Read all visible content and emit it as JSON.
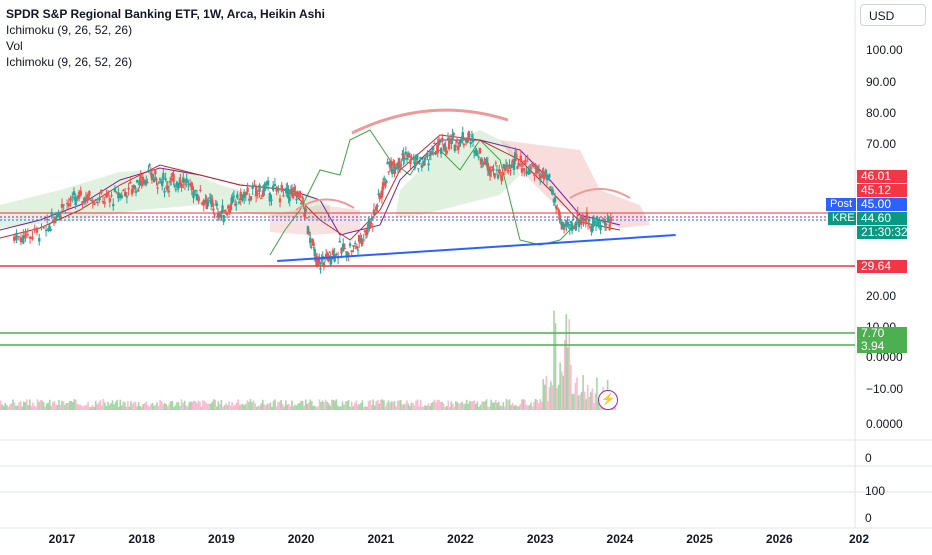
{
  "legend": {
    "title": "SPDR S&P Regional Banking ETF, 1W, Arca, Heikin Ashi",
    "indicators": [
      "Ichimoku (9, 26, 52, 26)",
      "Vol",
      "Ichimoku (9, 26, 52, 26)"
    ]
  },
  "currency": "USD",
  "colors": {
    "up": "#26a69a",
    "down": "#ef5350",
    "red_line": "#e53935",
    "green_line": "#4caf50",
    "trend": "#2962ff",
    "post_badge": "#2962ff",
    "kre_badge": "#089981",
    "dotted_purple": "#9c27b0"
  },
  "badges": [
    {
      "label": "46.01",
      "color": "#f23645"
    },
    {
      "label": "45.12",
      "color": "#f23645"
    },
    {
      "label": "45.00",
      "color": "#2962ff"
    },
    {
      "label": "44.60",
      "color": "#089981"
    },
    {
      "label": "21:30:32",
      "color": "#089981"
    },
    {
      "label": "29.64",
      "color": "#f23645"
    },
    {
      "label": "7.70",
      "color": "#4caf50"
    },
    {
      "label": "3.94",
      "color": "#4caf50"
    }
  ],
  "side_tags": {
    "post": "Post",
    "ticker": "KRE"
  },
  "flash_icon": "lightning-icon",
  "chart_data": {
    "type": "line",
    "title": "SPDR S&P Regional Banking ETF, 1W, Arca, Heikin Ashi",
    "price_axis_ticks": [
      "100.00",
      "90.00",
      "80.00",
      "70.00",
      "20.00",
      "10.00",
      "0.0000",
      "−10.00",
      "0.0000"
    ],
    "pane_axis_ticks": [
      "0",
      "100",
      "0"
    ],
    "x_tick_labels": [
      "2017",
      "2018",
      "2019",
      "2020",
      "2021",
      "2022",
      "2023",
      "2024",
      "2025",
      "2026",
      "202"
    ],
    "x": [
      2016.4,
      2016.8,
      2017.0,
      2017.3,
      2017.6,
      2017.9,
      2018.1,
      2018.3,
      2018.5,
      2018.8,
      2019.0,
      2019.2,
      2019.5,
      2019.8,
      2020.0,
      2020.2,
      2020.4,
      2020.7,
      2020.9,
      2021.1,
      2021.3,
      2021.5,
      2021.7,
      2021.9,
      2022.1,
      2022.3,
      2022.5,
      2022.7,
      2022.9,
      2023.1,
      2023.3,
      2023.5,
      2023.7,
      2023.9
    ],
    "series": [
      {
        "name": "KRE",
        "values": [
          40,
          42,
          50,
          53,
          52,
          56,
          60,
          57,
          58,
          52,
          47,
          52,
          55,
          54,
          53,
          31,
          35,
          37,
          46,
          62,
          66,
          63,
          68,
          70,
          72,
          64,
          60,
          64,
          62,
          58,
          42,
          46,
          44,
          45
        ]
      }
    ],
    "horizontal_lines": [
      {
        "value": 29.64,
        "color": "#e53935"
      },
      {
        "value": 7.7,
        "color": "#4caf50"
      },
      {
        "value": 3.94,
        "color": "#4caf50"
      }
    ],
    "trendline": {
      "from": [
        2019.7,
        32
      ],
      "to": [
        2024.7,
        41
      ]
    },
    "last_price": 44.6,
    "post_price": 45.0,
    "countdown": "21:30:32"
  }
}
